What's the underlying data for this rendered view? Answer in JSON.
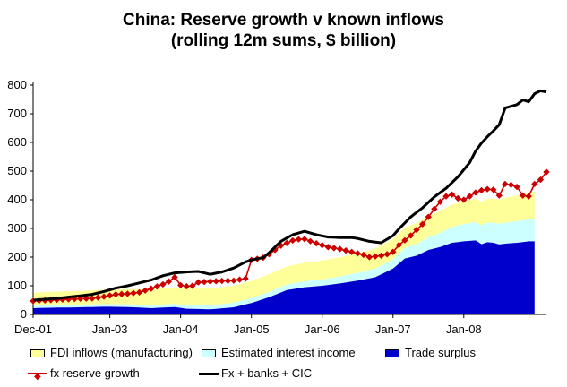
{
  "chart_data": {
    "type": "area",
    "title": "China: Reserve growth v known inflows",
    "subtitle": "(rolling 12m sums, $ billion)",
    "xlabel": "",
    "ylabel": "",
    "ylim": [
      0,
      800
    ],
    "yticks": [
      0,
      100,
      200,
      300,
      400,
      500,
      600,
      700,
      800
    ],
    "grid": false,
    "legend_position": "bottom",
    "x_start": "2001-12",
    "x_end": "2008-06",
    "x_tick_labels": [
      {
        "label": "Dec-01",
        "index": 0
      },
      {
        "label": "Jan-03",
        "index": 13
      },
      {
        "label": "Jan-04",
        "index": 25
      },
      {
        "label": "Jan-05",
        "index": 37
      },
      {
        "label": "Jan-06",
        "index": 49
      },
      {
        "label": "Jan-07",
        "index": 61
      },
      {
        "label": "Jan-08",
        "index": 73
      }
    ],
    "series": [
      {
        "name": "Trade surplus",
        "kind": "stacked-area",
        "color": "#0000CC",
        "anchors": [
          [
            0,
            22
          ],
          [
            4,
            24
          ],
          [
            8,
            25
          ],
          [
            12,
            27
          ],
          [
            16,
            26
          ],
          [
            20,
            22
          ],
          [
            24,
            26
          ],
          [
            26,
            20
          ],
          [
            30,
            18
          ],
          [
            34,
            25
          ],
          [
            37,
            40
          ],
          [
            40,
            60
          ],
          [
            43,
            85
          ],
          [
            46,
            95
          ],
          [
            49,
            100
          ],
          [
            52,
            108
          ],
          [
            55,
            118
          ],
          [
            58,
            130
          ],
          [
            61,
            160
          ],
          [
            63,
            195
          ],
          [
            65,
            205
          ],
          [
            67,
            225
          ],
          [
            69,
            235
          ],
          [
            71,
            250
          ],
          [
            73,
            255
          ],
          [
            75,
            258
          ],
          [
            76,
            245
          ],
          [
            77,
            252
          ],
          [
            78,
            250
          ],
          [
            79,
            244
          ],
          [
            80,
            247
          ],
          [
            82,
            250
          ],
          [
            84,
            255
          ],
          [
            85,
            255
          ]
        ]
      },
      {
        "name": "Estimated interest income",
        "kind": "stacked-area",
        "color": "#CCFFFF",
        "anchors": [
          [
            0,
            8
          ],
          [
            12,
            9
          ],
          [
            24,
            11
          ],
          [
            37,
            17
          ],
          [
            49,
            22
          ],
          [
            61,
            32
          ],
          [
            67,
            44
          ],
          [
            73,
            60
          ],
          [
            79,
            72
          ],
          [
            85,
            78
          ]
        ]
      },
      {
        "name": "FDI inflows (manufacturing)",
        "kind": "stacked-area",
        "color": "#FFFF99",
        "anchors": [
          [
            0,
            46
          ],
          [
            12,
            50
          ],
          [
            24,
            58
          ],
          [
            37,
            60
          ],
          [
            49,
            66
          ],
          [
            61,
            71
          ],
          [
            67,
            75
          ],
          [
            73,
            80
          ],
          [
            79,
            85
          ],
          [
            85,
            95
          ]
        ]
      },
      {
        "name": "fx reserve growth",
        "kind": "line-markers",
        "color": "#CC0000",
        "anchors": [
          [
            0,
            47
          ],
          [
            4,
            51
          ],
          [
            8,
            55
          ],
          [
            10,
            56
          ],
          [
            12,
            62
          ],
          [
            14,
            70
          ],
          [
            16,
            72
          ],
          [
            18,
            77
          ],
          [
            20,
            90
          ],
          [
            22,
            105
          ],
          [
            23,
            115
          ],
          [
            24,
            130
          ],
          [
            25,
            102
          ],
          [
            26,
            98
          ],
          [
            27,
            100
          ],
          [
            28,
            112
          ],
          [
            30,
            115
          ],
          [
            32,
            117
          ],
          [
            34,
            118
          ],
          [
            36,
            125
          ],
          [
            37,
            190
          ],
          [
            39,
            198
          ],
          [
            40,
            210
          ],
          [
            42,
            240
          ],
          [
            44,
            258
          ],
          [
            45,
            262
          ],
          [
            46,
            263
          ],
          [
            48,
            248
          ],
          [
            50,
            235
          ],
          [
            52,
            228
          ],
          [
            54,
            218
          ],
          [
            56,
            208
          ],
          [
            57,
            200
          ],
          [
            59,
            205
          ],
          [
            60,
            210
          ],
          [
            61,
            218
          ],
          [
            62,
            242
          ],
          [
            64,
            275
          ],
          [
            66,
            315
          ],
          [
            67,
            340
          ],
          [
            68,
            368
          ],
          [
            69,
            393
          ],
          [
            70,
            412
          ],
          [
            71,
            418
          ],
          [
            72,
            405
          ],
          [
            73,
            400
          ],
          [
            74,
            412
          ],
          [
            75,
            425
          ],
          [
            76,
            433
          ],
          [
            77,
            437
          ],
          [
            78,
            435
          ],
          [
            79,
            415
          ],
          [
            80,
            455
          ],
          [
            81,
            452
          ],
          [
            82,
            445
          ],
          [
            83,
            415
          ],
          [
            84,
            412
          ],
          [
            85,
            455
          ],
          [
            86,
            470
          ],
          [
            87,
            497
          ]
        ]
      },
      {
        "name": "Fx + banks + CIC",
        "kind": "line",
        "color": "#000000",
        "anchors": [
          [
            0,
            50
          ],
          [
            4,
            56
          ],
          [
            8,
            65
          ],
          [
            10,
            70
          ],
          [
            12,
            80
          ],
          [
            14,
            92
          ],
          [
            16,
            100
          ],
          [
            18,
            110
          ],
          [
            20,
            120
          ],
          [
            22,
            135
          ],
          [
            24,
            145
          ],
          [
            26,
            148
          ],
          [
            28,
            150
          ],
          [
            30,
            140
          ],
          [
            32,
            148
          ],
          [
            34,
            162
          ],
          [
            36,
            183
          ],
          [
            37,
            190
          ],
          [
            39,
            198
          ],
          [
            40,
            215
          ],
          [
            42,
            255
          ],
          [
            44,
            278
          ],
          [
            46,
            290
          ],
          [
            48,
            278
          ],
          [
            50,
            270
          ],
          [
            52,
            268
          ],
          [
            54,
            268
          ],
          [
            55,
            265
          ],
          [
            57,
            255
          ],
          [
            59,
            250
          ],
          [
            61,
            275
          ],
          [
            62,
            298
          ],
          [
            64,
            340
          ],
          [
            66,
            372
          ],
          [
            68,
            410
          ],
          [
            70,
            440
          ],
          [
            72,
            480
          ],
          [
            74,
            530
          ],
          [
            75,
            570
          ],
          [
            76,
            598
          ],
          [
            77,
            620
          ],
          [
            78,
            640
          ],
          [
            79,
            662
          ],
          [
            80,
            720
          ],
          [
            81,
            726
          ],
          [
            82,
            732
          ],
          [
            83,
            748
          ],
          [
            84,
            742
          ],
          [
            85,
            770
          ],
          [
            86,
            780
          ],
          [
            87,
            776
          ]
        ]
      }
    ]
  }
}
